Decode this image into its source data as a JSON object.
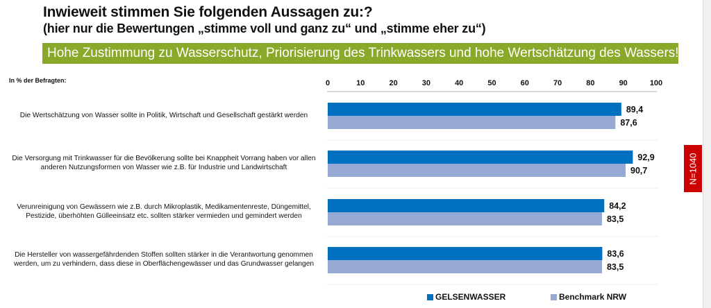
{
  "header": {
    "title": "Inwieweit stimmen Sie folgenden Aussagen zu:?",
    "subtitle": "(hier nur die  Bewertungen „stimme voll und ganz zu“ und „stimme eher zu“)",
    "banner": "Hohe Zustimmung zu Wasserschutz, Priorisierung des Trinkwassers und hohe Wertschätzung des Wassers!"
  },
  "unit_label": "In % der Befragten:",
  "sample_badge": "N=1040",
  "colors": {
    "banner": "#8aa829",
    "series_primary": "#0070c0",
    "series_benchmark": "#95a9d2",
    "badge": "#cc0000"
  },
  "chart_data": {
    "type": "bar",
    "orientation": "horizontal",
    "title": "Inwieweit stimmen Sie folgenden Aussagen zu:?",
    "xlabel": "In % der Befragten:",
    "ylabel": "",
    "xlim": [
      0,
      100
    ],
    "ticks": [
      "0",
      "10",
      "20",
      "30",
      "40",
      "50",
      "60",
      "70",
      "80",
      "90",
      "100"
    ],
    "grid": false,
    "legend_position": "bottom-right",
    "categories": [
      [
        "Die Wertschätzung von Wasser sollte in Politik, Wirtschaft und Gesellschaft gestärkt werden"
      ],
      [
        "Die Versorgung mit Trinkwasser für die Bevölkerung sollte bei Knappheit Vorrang haben vor allen",
        "anderen Nutzungsformen von Wasser wie z.B. für Industrie und Landwirtschaft"
      ],
      [
        "Verunreinigung von Gewässern wie z.B. durch Mikroplastik, Medikamentenreste, Düngemittel,",
        "Pestizide, überhöhten Gülleeinsatz etc. sollten stärker vermieden und gemindert werden"
      ],
      [
        "Die Hersteller von wassergefährdenden Stoffen sollten stärker in die Verantwortung genommen",
        "werden, um zu verhindern, dass diese in Oberflächengewässer und das Grundwasser gelangen"
      ]
    ],
    "series": [
      {
        "name": "GELSENWASSER",
        "values": [
          89.4,
          92.9,
          84.2,
          83.6
        ],
        "labels": [
          "89,4",
          "92,9",
          "84,2",
          "83,6"
        ]
      },
      {
        "name": "Benchmark NRW",
        "values": [
          87.6,
          90.7,
          83.5,
          83.5
        ],
        "labels": [
          "87,6",
          "90,7",
          "83,5",
          "83,5"
        ]
      }
    ]
  }
}
